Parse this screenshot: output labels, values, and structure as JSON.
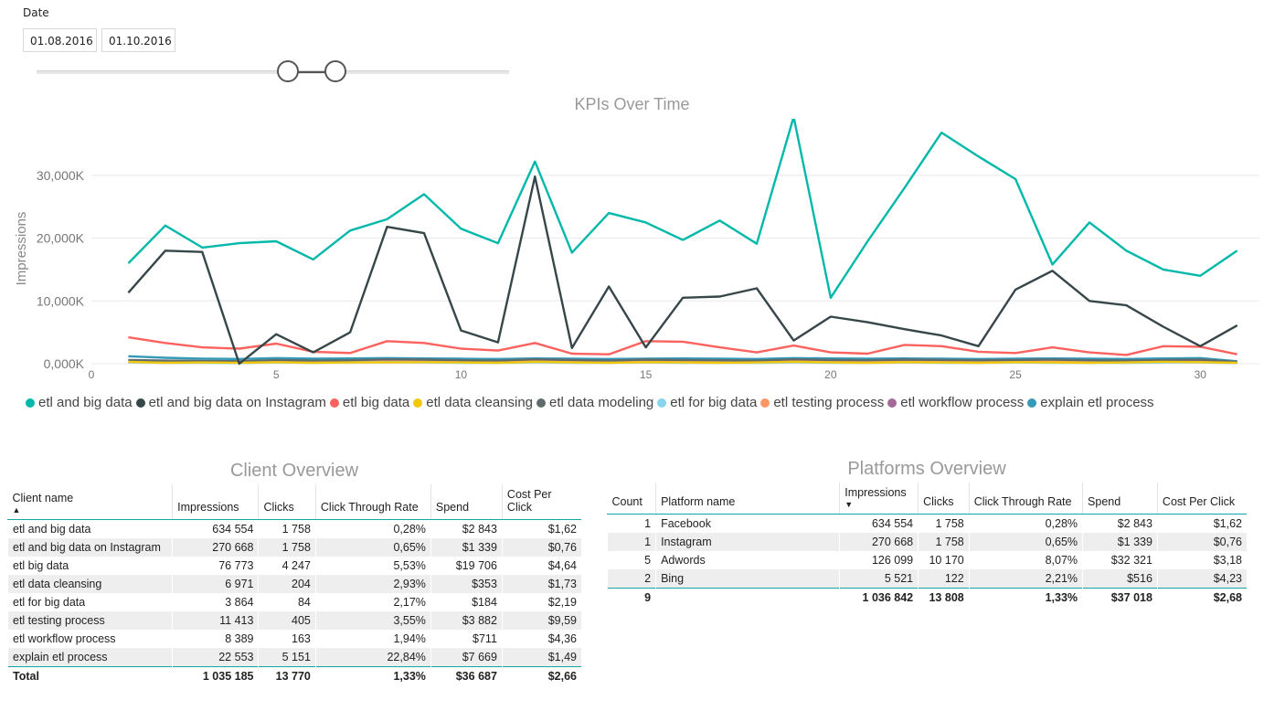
{
  "filter": {
    "label": "Date",
    "start": "01.08.2016",
    "end": "01.10.2016",
    "range": [
      0.535,
      0.635
    ]
  },
  "chart_data": {
    "type": "line",
    "title": "KPIs Over Time",
    "ylabel": "Impressions",
    "xlabel": "",
    "xlim": [
      0,
      31.6
    ],
    "ylim": [
      0,
      39000
    ],
    "xticks": [
      0,
      5,
      10,
      15,
      20,
      25,
      30
    ],
    "yticks": [
      0,
      10000,
      20000,
      30000
    ],
    "ytick_labels": [
      "0,000K",
      "10,000K",
      "20,000K",
      "30,000K"
    ],
    "grid": true,
    "legend": "bottom",
    "x": [
      1,
      2,
      3,
      4,
      5,
      6,
      7,
      8,
      9,
      10,
      11,
      12,
      13,
      14,
      15,
      16,
      17,
      18,
      19,
      20,
      21,
      22,
      23,
      24,
      25,
      26,
      27,
      28,
      29,
      30,
      31
    ],
    "series": [
      {
        "name": "etl and big data",
        "color": "#01b8aa",
        "values": [
          16000,
          22000,
          18500,
          19200,
          19500,
          16600,
          21200,
          23000,
          27000,
          21500,
          19200,
          32200,
          17700,
          24000,
          22500,
          19700,
          22800,
          19100,
          39300,
          10500,
          19500,
          28000,
          36800,
          33000,
          29400,
          15800,
          22500,
          18000,
          15000,
          14000,
          18000
        ]
      },
      {
        "name": "etl and big data on Instagram",
        "color": "#374649",
        "values": [
          11300,
          18000,
          17800,
          0,
          4700,
          1800,
          5000,
          21800,
          20800,
          5300,
          3400,
          29800,
          2500,
          12300,
          2600,
          10500,
          10700,
          12000,
          3700,
          7500,
          6600,
          5500,
          4500,
          2800,
          11800,
          14800,
          10000,
          9300,
          5900,
          2800,
          6100
        ]
      },
      {
        "name": "etl big data",
        "color": "#fd625e",
        "values": [
          4200,
          3300,
          2600,
          2400,
          3200,
          1900,
          1700,
          3600,
          3300,
          2400,
          2100,
          3300,
          1600,
          1500,
          3600,
          3500,
          2600,
          1800,
          2900,
          1800,
          1600,
          3000,
          2800,
          1900,
          1700,
          2600,
          1800,
          1400,
          2800,
          2700,
          1500
        ]
      },
      {
        "name": "etl data cleansing",
        "color": "#f2c80f",
        "values": [
          300,
          150,
          200,
          150,
          250,
          150,
          200,
          200,
          250,
          200,
          150,
          300,
          200,
          150,
          250,
          200,
          150,
          200,
          300,
          200,
          150,
          250,
          200,
          150,
          250,
          200,
          150,
          200,
          300,
          250,
          150
        ]
      },
      {
        "name": "etl data modeling",
        "color": "#5f6b6d",
        "values": [
          600,
          500,
          450,
          400,
          600,
          500,
          550,
          700,
          650,
          550,
          500,
          700,
          600,
          500,
          650,
          600,
          550,
          500,
          700,
          600,
          550,
          650,
          600,
          550,
          600,
          650,
          550,
          500,
          600,
          650,
          300
        ]
      },
      {
        "name": "etl for big data",
        "color": "#8ad4eb",
        "values": [
          200,
          150,
          150,
          100,
          200,
          150,
          200,
          250,
          200,
          150,
          150,
          200,
          150,
          150,
          200,
          150,
          150,
          150,
          200,
          150,
          150,
          200,
          150,
          150,
          200,
          150,
          150,
          150,
          200,
          200,
          100
        ]
      },
      {
        "name": "etl testing process",
        "color": "#fe9666",
        "values": [
          500,
          400,
          350,
          300,
          450,
          350,
          400,
          500,
          450,
          400,
          350,
          500,
          400,
          350,
          450,
          400,
          350,
          350,
          450,
          400,
          350,
          450,
          400,
          350,
          450,
          400,
          350,
          350,
          450,
          500,
          250
        ]
      },
      {
        "name": "etl workflow process",
        "color": "#a66999",
        "values": [
          250,
          200,
          200,
          150,
          250,
          200,
          250,
          300,
          250,
          200,
          200,
          300,
          250,
          200,
          250,
          200,
          200,
          200,
          300,
          250,
          200,
          250,
          200,
          200,
          250,
          200,
          200,
          200,
          250,
          300,
          150
        ]
      },
      {
        "name": "explain etl process",
        "color": "#3599b8",
        "values": [
          1200,
          950,
          800,
          750,
          900,
          800,
          850,
          900,
          850,
          800,
          750,
          850,
          800,
          750,
          800,
          850,
          800,
          750,
          900,
          850,
          800,
          850,
          800,
          750,
          800,
          850,
          800,
          750,
          850,
          900,
          400
        ]
      }
    ]
  },
  "client": {
    "title": "Client Overview",
    "columns": [
      "Client name",
      "Impressions",
      "Clicks",
      "Click Through Rate",
      "Spend",
      "Cost Per Click"
    ],
    "rows": [
      [
        "etl and big data",
        "634 554",
        "1 758",
        "0,28%",
        "$2 843",
        "$1,62"
      ],
      [
        "etl and big data on Instagram",
        "270 668",
        "1 758",
        "0,65%",
        "$1 339",
        "$0,76"
      ],
      [
        "etl big data",
        "76 773",
        "4 247",
        "5,53%",
        "$19 706",
        "$4,64"
      ],
      [
        "etl data cleansing",
        "6 971",
        "204",
        "2,93%",
        "$353",
        "$1,73"
      ],
      [
        "etl for big data",
        "3 864",
        "84",
        "2,17%",
        "$184",
        "$2,19"
      ],
      [
        "etl testing process",
        "11 413",
        "405",
        "3,55%",
        "$3 882",
        "$9,59"
      ],
      [
        "etl workflow process",
        "8 389",
        "163",
        "1,94%",
        "$711",
        "$4,36"
      ],
      [
        "explain etl process",
        "22 553",
        "5 151",
        "22,84%",
        "$7 669",
        "$1,49"
      ]
    ],
    "total": [
      "Total",
      "1 035 185",
      "13 770",
      "1,33%",
      "$36 687",
      "$2,66"
    ]
  },
  "platform": {
    "title": "Platforms Overview",
    "columns": [
      "Count",
      "Platform name",
      "Impressions",
      "Clicks",
      "Click Through Rate",
      "Spend",
      "Cost Per Click"
    ],
    "rows": [
      [
        "1",
        "Facebook",
        "634 554",
        "1 758",
        "0,28%",
        "$2 843",
        "$1,62"
      ],
      [
        "1",
        "Instagram",
        "270 668",
        "1 758",
        "0,65%",
        "$1 339",
        "$0,76"
      ],
      [
        "5",
        "Adwords",
        "126 099",
        "10 170",
        "8,07%",
        "$32 321",
        "$3,18"
      ],
      [
        "2",
        "Bing",
        "5 521",
        "122",
        "2,21%",
        "$516",
        "$4,23"
      ]
    ],
    "total": [
      "9",
      "",
      "1 036 842",
      "13 808",
      "1,33%",
      "$37 018",
      "$2,68"
    ]
  },
  "icons": {
    "sort": "sort-arrow-icon",
    "legend": "legend-dot-icon"
  }
}
